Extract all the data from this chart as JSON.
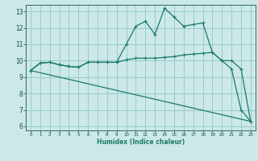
{
  "xlabel": "Humidex (Indice chaleur)",
  "bg_color": "#cce8e8",
  "grid_color": "#99cccc",
  "line_color": "#1a7a6a",
  "spine_color": "#336666",
  "tick_color": "#1a4a4a",
  "xlim": [
    -0.5,
    23.5
  ],
  "ylim": [
    5.75,
    13.4
  ],
  "xticks": [
    0,
    1,
    2,
    3,
    4,
    5,
    6,
    7,
    8,
    9,
    10,
    11,
    12,
    13,
    14,
    15,
    16,
    17,
    18,
    19,
    20,
    21,
    22,
    23
  ],
  "yticks": [
    6,
    7,
    8,
    9,
    10,
    11,
    12,
    13
  ],
  "line1_x": [
    0,
    1,
    2,
    3,
    4,
    5,
    6,
    7,
    8,
    9,
    10,
    11,
    12,
    13,
    14,
    15,
    16,
    17,
    18,
    19,
    20,
    21,
    22,
    23
  ],
  "line1_y": [
    9.4,
    9.85,
    9.9,
    9.75,
    9.65,
    9.6,
    9.9,
    9.9,
    9.9,
    9.9,
    10.05,
    10.15,
    10.15,
    10.15,
    10.2,
    10.25,
    10.35,
    10.4,
    10.45,
    10.5,
    10.0,
    10.0,
    9.5,
    6.3
  ],
  "line2_x": [
    0,
    1,
    2,
    3,
    4,
    5,
    6,
    7,
    8,
    9,
    10,
    11,
    12,
    13,
    14,
    15,
    16,
    17,
    18,
    19,
    20,
    21,
    22,
    23
  ],
  "line2_y": [
    9.4,
    9.85,
    9.9,
    9.75,
    9.65,
    9.6,
    9.9,
    9.9,
    9.9,
    9.9,
    11.0,
    12.1,
    12.4,
    11.6,
    13.2,
    12.65,
    12.1,
    12.2,
    12.3,
    10.5,
    10.0,
    9.5,
    7.0,
    6.3
  ],
  "line3_x": [
    0,
    23
  ],
  "line3_y": [
    9.4,
    6.3
  ]
}
